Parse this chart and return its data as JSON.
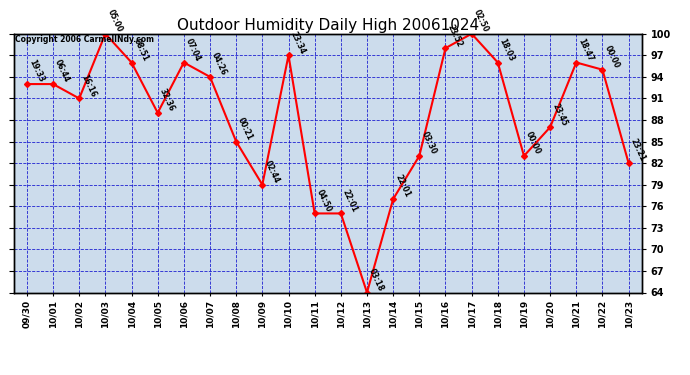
{
  "title": "Outdoor Humidity Daily High 20061024",
  "copyright": "Copyright 2006 CarmelINdy.com",
  "x_labels": [
    "09/30",
    "10/01",
    "10/02",
    "10/03",
    "10/04",
    "10/05",
    "10/06",
    "10/07",
    "10/08",
    "10/09",
    "10/10",
    "10/11",
    "10/12",
    "10/13",
    "10/14",
    "10/15",
    "10/16",
    "10/17",
    "10/18",
    "10/19",
    "10/20",
    "10/21",
    "10/22",
    "10/23"
  ],
  "y_values": [
    93,
    93,
    91,
    100,
    96,
    89,
    96,
    94,
    85,
    79,
    97,
    75,
    75,
    64,
    77,
    83,
    98,
    100,
    96,
    83,
    87,
    96,
    95,
    82
  ],
  "point_labels": [
    "19:33",
    "06:44",
    "16:16",
    "05:00",
    "08:51",
    "32:36",
    "07:04",
    "04:26",
    "00:21",
    "02:44",
    "23:34",
    "04:50",
    "22:01",
    "03:18",
    "22:01",
    "03:30",
    "23:52",
    "02:50",
    "18:03",
    "00:00",
    "23:45",
    "18:47",
    "00:00",
    "23:21"
  ],
  "ylim_min": 64,
  "ylim_max": 100,
  "yticks": [
    64,
    67,
    70,
    73,
    76,
    79,
    82,
    85,
    88,
    91,
    94,
    97,
    100
  ],
  "line_color": "red",
  "marker_color": "red",
  "grid_color": "#0000cc",
  "bg_color": "#ccdcec",
  "title_fontsize": 11,
  "label_fontsize": 5.5,
  "copyright_fontsize": 5.5
}
